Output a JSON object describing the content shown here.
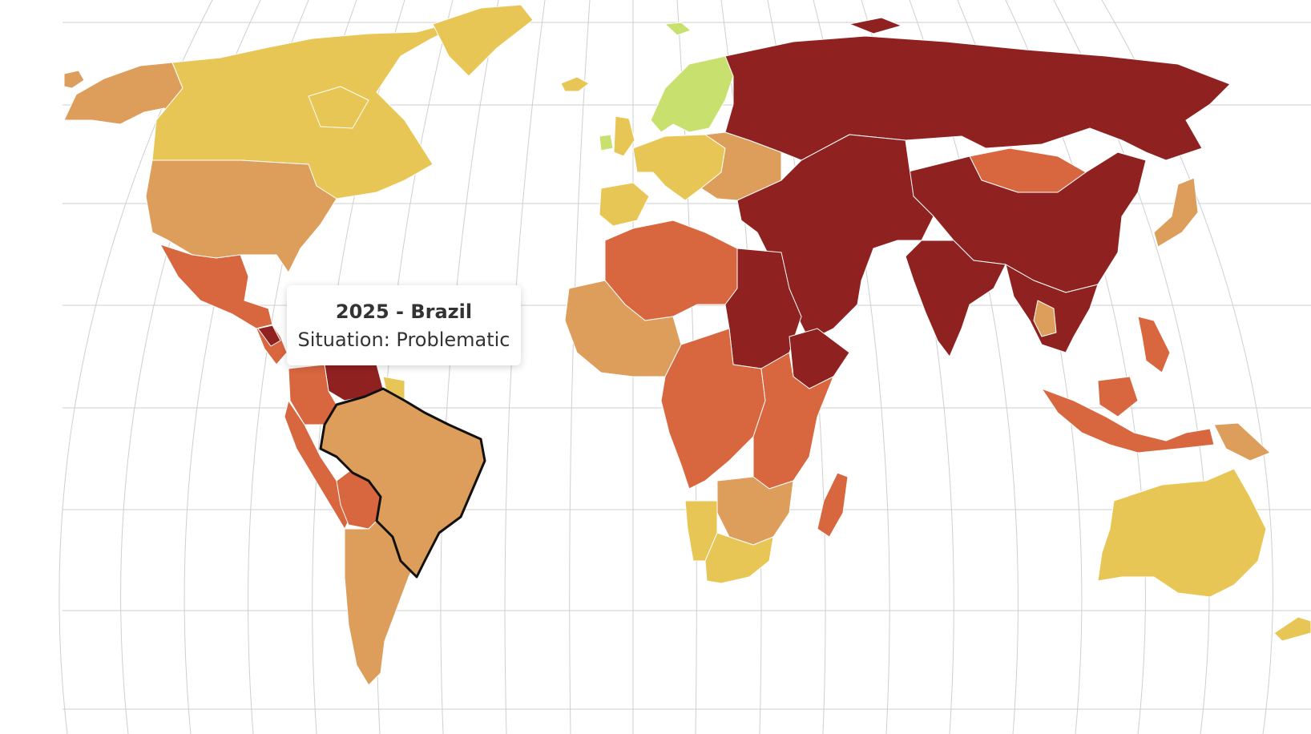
{
  "tooltip": {
    "title": "2025 - Brazil",
    "text": "Situation: Problematic"
  },
  "selected_country": "brazil",
  "legend_colors": {
    "good": "#c8e06e",
    "satisfactory": "#e8c656",
    "problematic": "#dd9d5b",
    "difficult": "#d8663f",
    "very_serious": "#8f2220"
  },
  "countries": [
    {
      "name": "canada",
      "situation": "satisfactory"
    },
    {
      "name": "alaska",
      "situation": "problematic"
    },
    {
      "name": "greenland",
      "situation": "satisfactory"
    },
    {
      "name": "usa",
      "situation": "problematic"
    },
    {
      "name": "mexico",
      "situation": "difficult"
    },
    {
      "name": "central-america",
      "situation": "difficult"
    },
    {
      "name": "nicaragua",
      "situation": "very_serious"
    },
    {
      "name": "venezuela",
      "situation": "very_serious"
    },
    {
      "name": "colombia",
      "situation": "difficult"
    },
    {
      "name": "guianas",
      "situation": "satisfactory"
    },
    {
      "name": "peru-ecuador",
      "situation": "difficult"
    },
    {
      "name": "bolivia",
      "situation": "difficult"
    },
    {
      "name": "chile-argentina",
      "situation": "problematic"
    },
    {
      "name": "brazil",
      "situation": "problematic"
    },
    {
      "name": "iceland",
      "situation": "satisfactory"
    },
    {
      "name": "scandinavia",
      "situation": "good"
    },
    {
      "name": "ireland",
      "situation": "good"
    },
    {
      "name": "uk",
      "situation": "satisfactory"
    },
    {
      "name": "western-europe",
      "situation": "satisfactory"
    },
    {
      "name": "iberia",
      "situation": "satisfactory"
    },
    {
      "name": "eastern-europe",
      "situation": "problematic"
    },
    {
      "name": "russia",
      "situation": "very_serious"
    },
    {
      "name": "china",
      "situation": "very_serious"
    },
    {
      "name": "mongolia",
      "situation": "difficult"
    },
    {
      "name": "middle-east",
      "situation": "very_serious"
    },
    {
      "name": "india",
      "situation": "very_serious"
    },
    {
      "name": "southeast-asia",
      "situation": "very_serious"
    },
    {
      "name": "thailand",
      "situation": "problematic"
    },
    {
      "name": "japan",
      "situation": "problematic"
    },
    {
      "name": "indonesia",
      "situation": "difficult"
    },
    {
      "name": "philippines",
      "situation": "difficult"
    },
    {
      "name": "png",
      "situation": "problematic"
    },
    {
      "name": "australia",
      "situation": "satisfactory"
    },
    {
      "name": "new-zealand",
      "situation": "satisfactory"
    },
    {
      "name": "north-africa",
      "situation": "difficult"
    },
    {
      "name": "west-africa",
      "situation": "problematic"
    },
    {
      "name": "egypt-sudan",
      "situation": "very_serious"
    },
    {
      "name": "horn-of-africa",
      "situation": "very_serious"
    },
    {
      "name": "central-africa",
      "situation": "difficult"
    },
    {
      "name": "east-africa",
      "situation": "difficult"
    },
    {
      "name": "southern-africa",
      "situation": "problematic"
    },
    {
      "name": "namibia",
      "situation": "satisfactory"
    },
    {
      "name": "south-africa",
      "situation": "satisfactory"
    },
    {
      "name": "madagascar",
      "situation": "difficult"
    }
  ]
}
